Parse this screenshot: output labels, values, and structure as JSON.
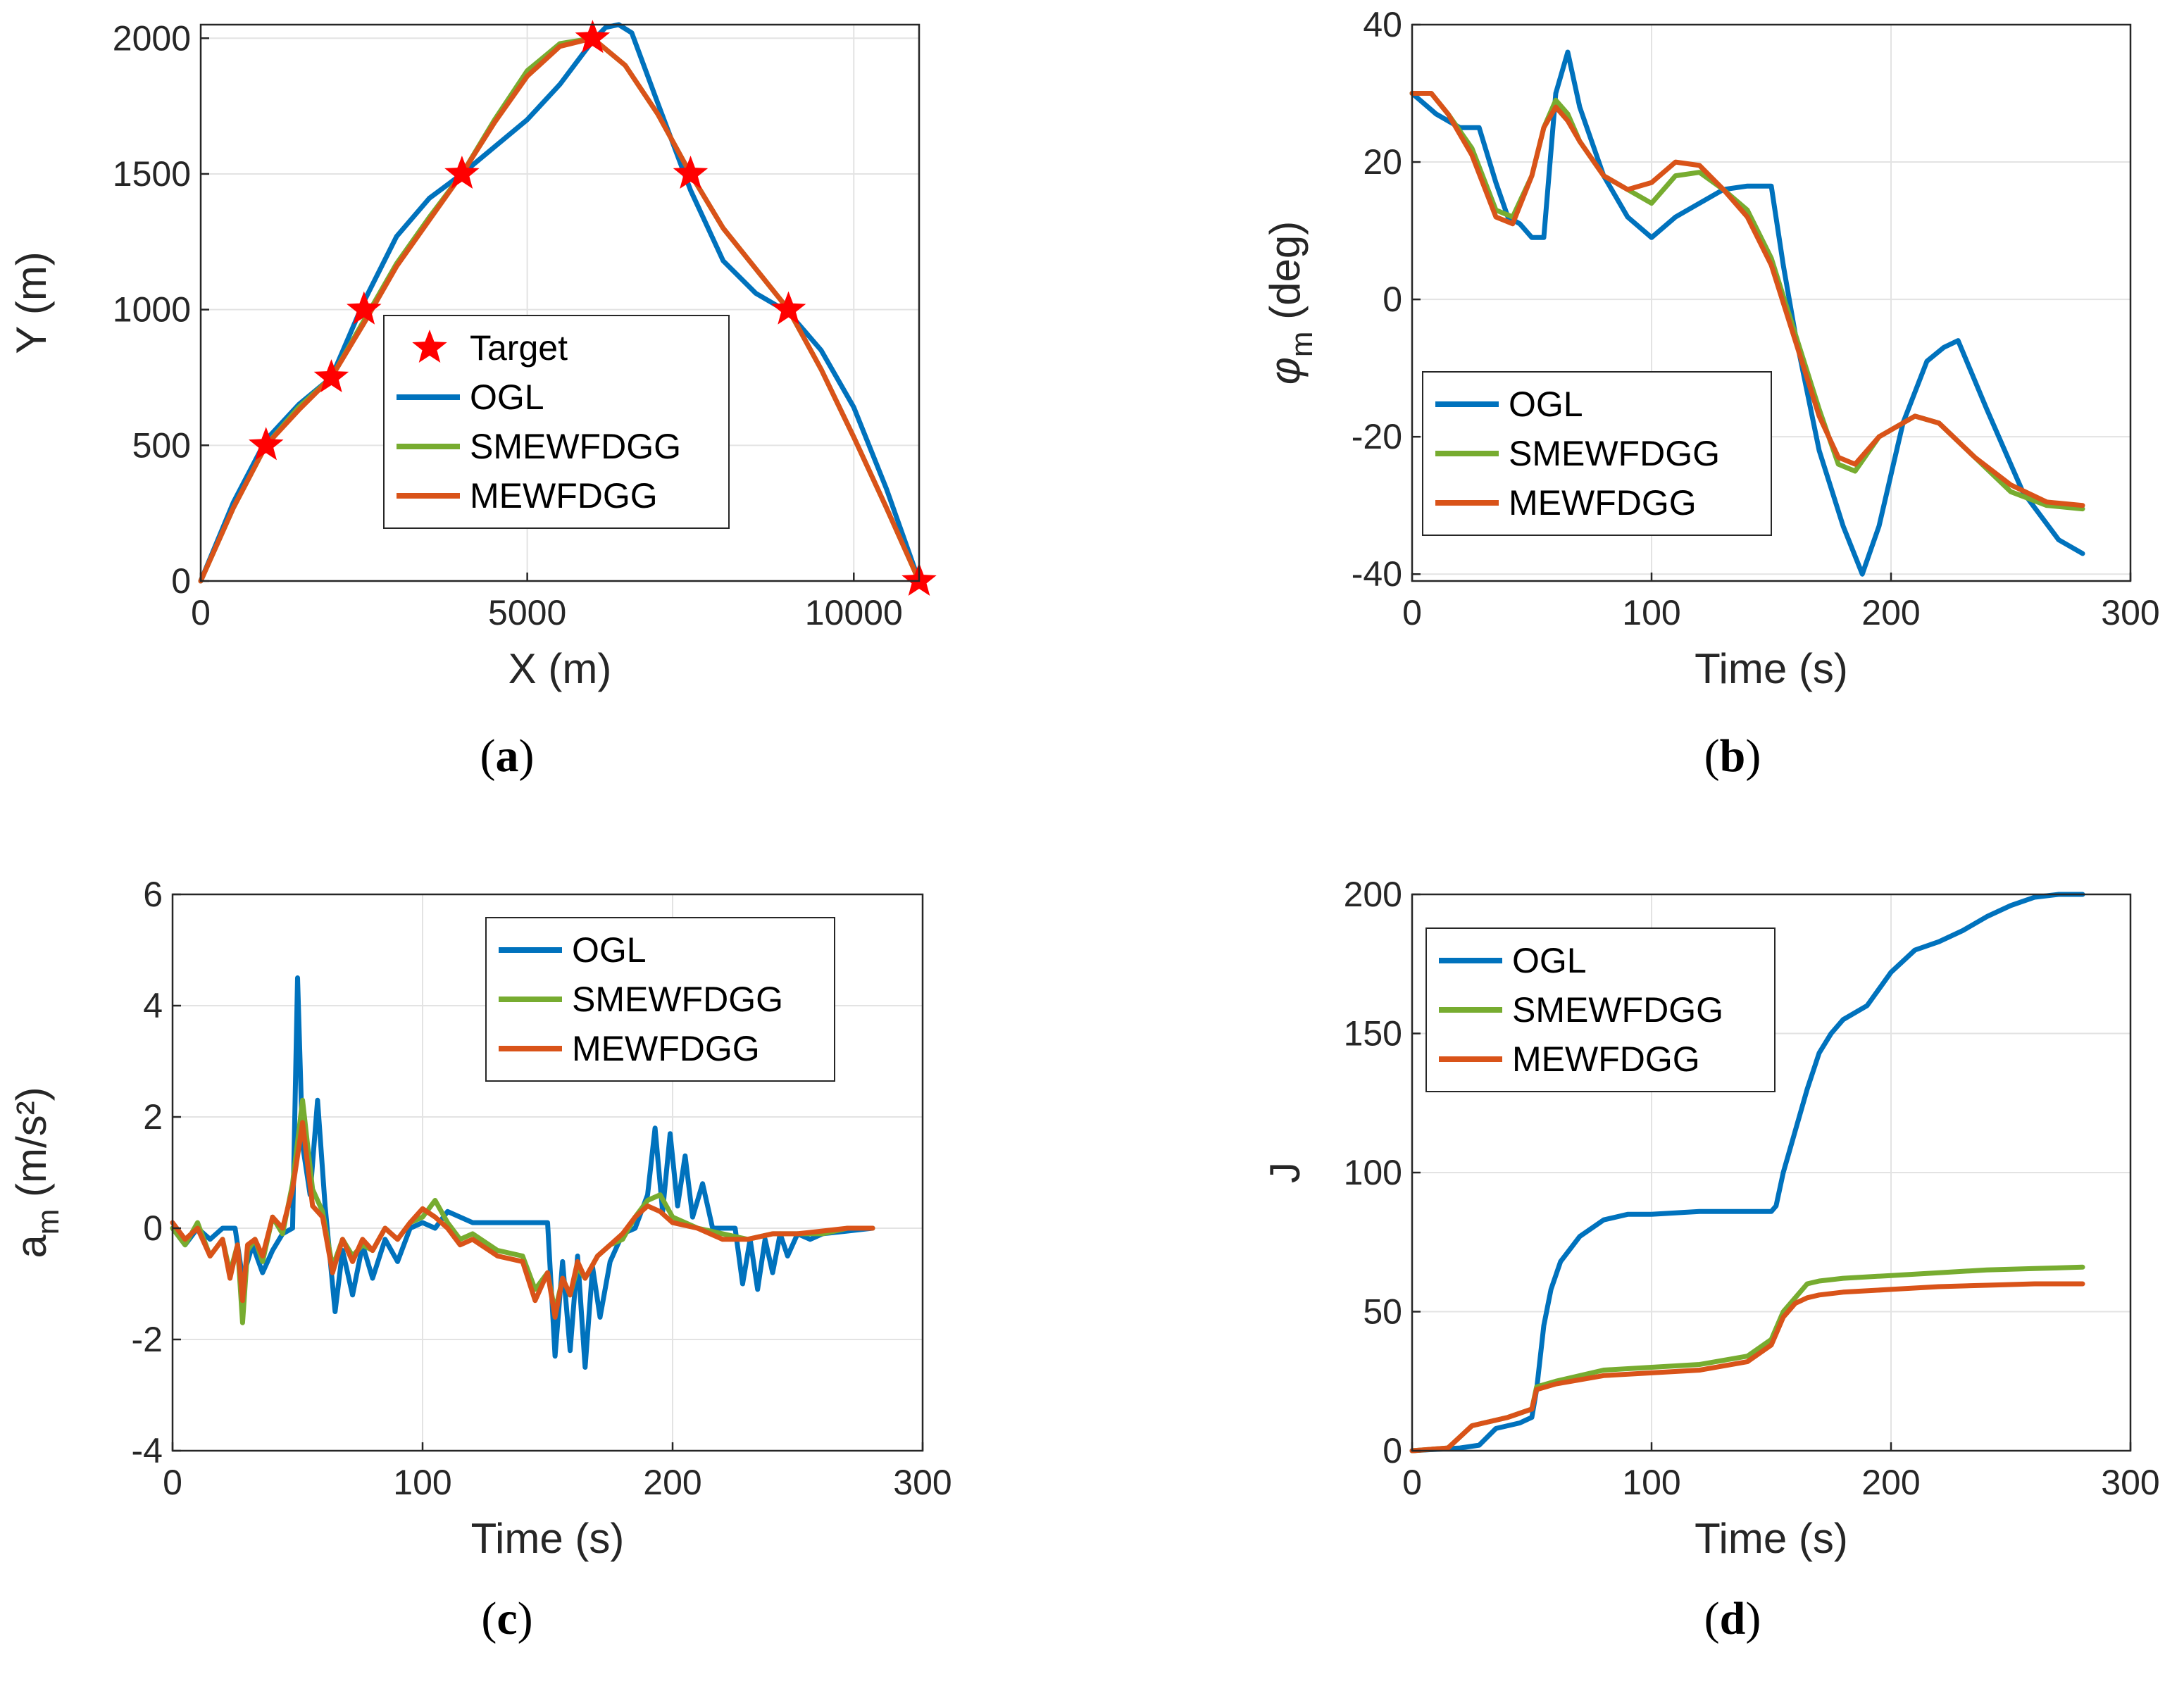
{
  "colors": {
    "OGL": "#0072BD",
    "SMEWFDGG": "#77AC30",
    "MEWFDGG": "#D95319",
    "Target": "#ff0000"
  },
  "chart_data": [
    {
      "id": "a",
      "type": "line",
      "caption": "(a)",
      "xlabel": "X (m)",
      "ylabel": "Y (m)",
      "xlim": [
        0,
        11000
      ],
      "ylim": [
        0,
        2050
      ],
      "xticks": [
        0,
        5000,
        10000
      ],
      "yticks": [
        0,
        500,
        1000,
        1500,
        2000
      ],
      "legend": [
        "Target",
        "OGL",
        "SMEWFDGG",
        "MEWFDGG"
      ],
      "targets": {
        "x": [
          1000,
          2000,
          2500,
          4000,
          6000,
          7500,
          9000,
          11000
        ],
        "y": [
          500,
          750,
          1000,
          1500,
          2000,
          1500,
          1000,
          0
        ]
      },
      "series": [
        {
          "name": "OGL",
          "x": [
            0,
            500,
            1000,
            1500,
            2000,
            2500,
            3000,
            3500,
            4000,
            4500,
            5000,
            5500,
            6000,
            6200,
            6400,
            6600,
            7000,
            7500,
            8000,
            8500,
            9000,
            9500,
            10000,
            10500,
            11000
          ],
          "y": [
            0,
            290,
            520,
            650,
            750,
            1030,
            1270,
            1410,
            1500,
            1600,
            1700,
            1830,
            1990,
            2040,
            2050,
            2020,
            1760,
            1440,
            1180,
            1060,
            990,
            850,
            640,
            340,
            0
          ]
        },
        {
          "name": "SMEWFDGG",
          "x": [
            0,
            500,
            1000,
            1500,
            2000,
            2500,
            3000,
            3500,
            4000,
            4500,
            5000,
            5500,
            6000,
            6500,
            7000,
            7500,
            8000,
            8500,
            9000,
            9500,
            10000,
            10500,
            11000
          ],
          "y": [
            0,
            270,
            500,
            640,
            750,
            960,
            1170,
            1340,
            1500,
            1700,
            1880,
            1980,
            2000,
            1900,
            1720,
            1500,
            1300,
            1150,
            1000,
            780,
            530,
            270,
            0
          ]
        },
        {
          "name": "MEWFDGG",
          "x": [
            0,
            500,
            1000,
            1500,
            2000,
            2500,
            3000,
            3500,
            4000,
            4500,
            5000,
            5500,
            6000,
            6500,
            7000,
            7500,
            8000,
            8500,
            9000,
            9500,
            10000,
            10500,
            11000
          ],
          "y": [
            0,
            270,
            500,
            630,
            750,
            950,
            1160,
            1330,
            1500,
            1690,
            1860,
            1970,
            2000,
            1900,
            1720,
            1500,
            1300,
            1150,
            1000,
            780,
            530,
            270,
            0
          ]
        }
      ]
    },
    {
      "id": "b",
      "type": "line",
      "caption": "(b)",
      "xlabel": "Time (s)",
      "ylabel": "φ_m (deg)",
      "xlim": [
        0,
        300
      ],
      "ylim": [
        -41,
        40
      ],
      "xticks": [
        0,
        100,
        200,
        300
      ],
      "yticks": [
        -40,
        -20,
        0,
        20,
        40
      ],
      "legend": [
        "OGL",
        "SMEWFDGG",
        "MEWFDGG"
      ],
      "series": [
        {
          "name": "OGL",
          "x": [
            0,
            10,
            20,
            28,
            35,
            40,
            45,
            50,
            55,
            60,
            65,
            70,
            80,
            90,
            100,
            110,
            120,
            130,
            140,
            150,
            155,
            160,
            170,
            180,
            188,
            195,
            205,
            215,
            222,
            228,
            240,
            255,
            270,
            280
          ],
          "y": [
            30,
            27,
            25,
            25,
            17,
            12,
            11,
            9,
            9,
            30,
            36,
            28,
            18,
            12,
            9,
            12,
            14,
            16,
            16.5,
            16.5,
            5,
            -5,
            -22,
            -33,
            -40,
            -33,
            -18,
            -9,
            -7,
            -6,
            -16,
            -28,
            -35,
            -37
          ]
        },
        {
          "name": "SMEWFDGG",
          "x": [
            0,
            8,
            15,
            25,
            35,
            42,
            50,
            55,
            60,
            65,
            70,
            80,
            90,
            100,
            110,
            120,
            130,
            140,
            150,
            160,
            170,
            178,
            185,
            195,
            210,
            220,
            235,
            250,
            265,
            280
          ],
          "y": [
            30,
            30,
            27,
            22,
            13,
            12,
            18,
            25,
            29,
            27,
            23,
            18,
            16,
            14,
            18,
            18.5,
            16,
            13,
            6,
            -5,
            -16,
            -24,
            -25,
            -20,
            -17,
            -18,
            -23,
            -28,
            -30,
            -30.5
          ]
        },
        {
          "name": "MEWFDGG",
          "x": [
            0,
            8,
            15,
            25,
            35,
            42,
            50,
            55,
            60,
            65,
            70,
            80,
            90,
            100,
            110,
            120,
            130,
            140,
            150,
            160,
            170,
            178,
            185,
            195,
            210,
            220,
            235,
            250,
            265,
            280
          ],
          "y": [
            30,
            30,
            27,
            21,
            12,
            11,
            18,
            25,
            28,
            26,
            23,
            18,
            16,
            17,
            20,
            19.5,
            16,
            12,
            5,
            -6,
            -17,
            -23,
            -24,
            -20,
            -17,
            -18,
            -23,
            -27,
            -29.5,
            -30
          ]
        }
      ]
    },
    {
      "id": "c",
      "type": "line",
      "caption": "(c)",
      "xlabel": "Time (s)",
      "ylabel": "a_m (m/s²)",
      "xlim": [
        0,
        300
      ],
      "ylim": [
        -4,
        6
      ],
      "xticks": [
        0,
        100,
        200,
        300
      ],
      "yticks": [
        -4,
        -2,
        0,
        2,
        4,
        6
      ],
      "legend": [
        "OGL",
        "SMEWFDGG",
        "MEWFDGG"
      ],
      "series": [
        {
          "name": "OGL",
          "x": [
            0,
            5,
            10,
            15,
            20,
            25,
            28,
            32,
            36,
            40,
            44,
            48,
            50,
            52,
            55,
            58,
            61,
            65,
            68,
            72,
            76,
            80,
            85,
            90,
            95,
            100,
            105,
            110,
            120,
            130,
            140,
            150,
            153,
            156,
            159,
            162,
            165,
            168,
            171,
            175,
            180,
            185,
            190,
            193,
            196,
            199,
            202,
            205,
            208,
            212,
            216,
            220,
            225,
            228,
            231,
            234,
            237,
            240,
            243,
            246,
            250,
            255,
            260,
            270,
            280
          ],
          "y": [
            0,
            -0.3,
            0,
            -0.2,
            0,
            0,
            -0.9,
            -0.3,
            -0.8,
            -0.4,
            -0.1,
            0,
            4.5,
            1.5,
            0.6,
            2.3,
            0.4,
            -1.5,
            -0.4,
            -1.2,
            -0.3,
            -0.9,
            -0.2,
            -0.6,
            0,
            0.1,
            0,
            0.3,
            0.1,
            0.1,
            0.1,
            0.1,
            -2.3,
            -0.6,
            -2.2,
            -0.5,
            -2.5,
            -0.7,
            -1.6,
            -0.6,
            -0.1,
            0,
            0.6,
            1.8,
            0.3,
            1.7,
            0.4,
            1.3,
            0.2,
            0.8,
            0,
            0,
            0,
            -1.0,
            -0.2,
            -1.1,
            -0.2,
            -0.8,
            -0.1,
            -0.5,
            -0.1,
            -0.2,
            -0.1,
            -0.05,
            0
          ]
        },
        {
          "name": "SMEWFDGG",
          "x": [
            0,
            5,
            10,
            15,
            20,
            23,
            26,
            28,
            30,
            33,
            36,
            40,
            44,
            48,
            52,
            56,
            60,
            64,
            68,
            72,
            76,
            80,
            85,
            90,
            95,
            100,
            105,
            110,
            115,
            120,
            130,
            140,
            145,
            150,
            153,
            156,
            159,
            162,
            165,
            170,
            175,
            180,
            185,
            190,
            195,
            200,
            210,
            220,
            230,
            240,
            250,
            260,
            270,
            280
          ],
          "y": [
            0,
            -0.3,
            0.1,
            -0.5,
            -0.2,
            -0.8,
            -0.3,
            -1.7,
            -0.4,
            -0.2,
            -0.6,
            0.2,
            -0.1,
            0.8,
            2.3,
            0.7,
            0.3,
            -0.7,
            -0.2,
            -0.5,
            -0.3,
            -0.4,
            0,
            -0.2,
            0.1,
            0.2,
            0.5,
            0.1,
            -0.2,
            -0.1,
            -0.4,
            -0.5,
            -1.1,
            -0.8,
            -1.5,
            -0.9,
            -1.2,
            -0.7,
            -0.9,
            -0.5,
            -0.3,
            -0.2,
            0.2,
            0.5,
            0.6,
            0.2,
            0,
            -0.1,
            -0.2,
            -0.1,
            -0.1,
            -0.1,
            0,
            0
          ]
        },
        {
          "name": "MEWFDGG",
          "x": [
            0,
            5,
            10,
            15,
            20,
            23,
            26,
            28,
            30,
            33,
            36,
            40,
            44,
            48,
            52,
            56,
            60,
            64,
            68,
            72,
            76,
            80,
            85,
            90,
            95,
            100,
            105,
            110,
            115,
            120,
            130,
            140,
            145,
            150,
            153,
            156,
            159,
            162,
            165,
            170,
            175,
            180,
            185,
            190,
            195,
            200,
            210,
            220,
            230,
            240,
            250,
            260,
            270,
            280
          ],
          "y": [
            0.1,
            -0.2,
            0,
            -0.5,
            -0.2,
            -0.9,
            -0.3,
            -1.3,
            -0.3,
            -0.2,
            -0.5,
            0.2,
            0,
            0.7,
            1.9,
            0.4,
            0.2,
            -0.8,
            -0.2,
            -0.6,
            -0.2,
            -0.4,
            0,
            -0.2,
            0.1,
            0.35,
            0.2,
            0,
            -0.3,
            -0.2,
            -0.5,
            -0.6,
            -1.3,
            -0.8,
            -1.6,
            -0.9,
            -1.2,
            -0.6,
            -0.9,
            -0.5,
            -0.3,
            -0.1,
            0.2,
            0.4,
            0.3,
            0.1,
            0,
            -0.2,
            -0.2,
            -0.1,
            -0.1,
            -0.05,
            0,
            0
          ]
        }
      ]
    },
    {
      "id": "d",
      "type": "line",
      "caption": "(d)",
      "xlabel": "Time (s)",
      "ylabel": "J",
      "xlim": [
        0,
        300
      ],
      "ylim": [
        0,
        200
      ],
      "xticks": [
        0,
        100,
        200,
        300
      ],
      "yticks": [
        0,
        50,
        100,
        150,
        200
      ],
      "legend": [
        "OGL",
        "SMEWFDGG",
        "MEWFDGG"
      ],
      "series": [
        {
          "name": "OGL",
          "x": [
            0,
            20,
            28,
            35,
            45,
            50,
            52,
            55,
            58,
            62,
            70,
            80,
            90,
            100,
            120,
            140,
            150,
            152,
            155,
            160,
            165,
            170,
            175,
            180,
            190,
            200,
            210,
            220,
            230,
            240,
            250,
            260,
            270,
            280
          ],
          "y": [
            0,
            1,
            2,
            8,
            10,
            12,
            22,
            45,
            58,
            68,
            77,
            83,
            85,
            85,
            86,
            86,
            86,
            88,
            100,
            115,
            130,
            143,
            150,
            155,
            160,
            172,
            180,
            183,
            187,
            192,
            196,
            199,
            200,
            200
          ]
        },
        {
          "name": "SMEWFDGG",
          "x": [
            0,
            15,
            20,
            25,
            30,
            40,
            50,
            52,
            60,
            80,
            100,
            120,
            140,
            150,
            155,
            160,
            165,
            170,
            180,
            200,
            220,
            240,
            260,
            280
          ],
          "y": [
            0,
            1,
            5,
            9,
            10,
            12,
            15,
            23,
            25,
            29,
            30,
            31,
            34,
            40,
            50,
            55,
            60,
            61,
            62,
            63,
            64,
            65,
            65.5,
            66
          ]
        },
        {
          "name": "MEWFDGG",
          "x": [
            0,
            15,
            20,
            25,
            30,
            40,
            50,
            52,
            60,
            80,
            100,
            120,
            140,
            150,
            155,
            160,
            165,
            170,
            180,
            200,
            220,
            240,
            260,
            280
          ],
          "y": [
            0,
            1,
            5,
            9,
            10,
            12,
            15,
            22,
            24,
            27,
            28,
            29,
            32,
            38,
            48,
            53,
            55,
            56,
            57,
            58,
            59,
            59.5,
            60,
            60
          ]
        }
      ]
    }
  ]
}
